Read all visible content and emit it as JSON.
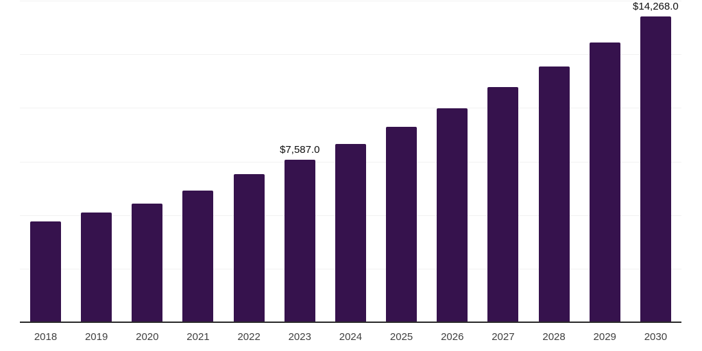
{
  "chart": {
    "background": "#FFFFFF",
    "bar_color": "#36124D",
    "gridline_color": "#F2F2F2",
    "axis_line_color": "#2B2B2B",
    "tick_label_color": "#3F3F3F",
    "data_label_color": "#0E0E0E"
  },
  "chart_data": {
    "type": "bar",
    "title": "",
    "xlabel": "",
    "ylabel": "",
    "ylim": [
      0,
      15000
    ],
    "gridlines": [
      2500,
      5000,
      7500,
      10000,
      12500,
      15000
    ],
    "grid": true,
    "legend": false,
    "categories": [
      "2018",
      "2019",
      "2020",
      "2021",
      "2022",
      "2023",
      "2024",
      "2025",
      "2026",
      "2027",
      "2028",
      "2029",
      "2030"
    ],
    "values": [
      4690,
      5120,
      5520,
      6150,
      6900,
      7587,
      8320,
      9110,
      9970,
      10970,
      11940,
      13060,
      14268
    ],
    "data_labels": [
      {
        "category": "2023",
        "text": "$7,587.0"
      },
      {
        "category": "2030",
        "text": "$14,268.0"
      }
    ]
  }
}
